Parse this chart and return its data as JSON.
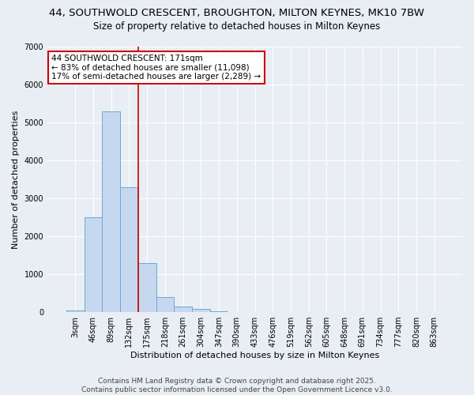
{
  "title_line1": "44, SOUTHWOLD CRESCENT, BROUGHTON, MILTON KEYNES, MK10 7BW",
  "title_line2": "Size of property relative to detached houses in Milton Keynes",
  "xlabel": "Distribution of detached houses by size in Milton Keynes",
  "ylabel": "Number of detached properties",
  "categories": [
    "3sqm",
    "46sqm",
    "89sqm",
    "132sqm",
    "175sqm",
    "218sqm",
    "261sqm",
    "304sqm",
    "347sqm",
    "390sqm",
    "433sqm",
    "476sqm",
    "519sqm",
    "562sqm",
    "605sqm",
    "648sqm",
    "691sqm",
    "734sqm",
    "777sqm",
    "820sqm",
    "863sqm"
  ],
  "values": [
    50,
    2500,
    5300,
    3300,
    1300,
    400,
    150,
    80,
    30,
    10,
    5,
    3,
    2,
    1,
    1,
    0,
    0,
    0,
    0,
    0,
    0
  ],
  "bar_color": "#c5d8ef",
  "bar_edge_color": "#6aaad4",
  "annotation_text": "44 SOUTHWOLD CRESCENT: 171sqm\n← 83% of detached houses are smaller (11,098)\n17% of semi-detached houses are larger (2,289) →",
  "vline_color": "#cc0000",
  "annotation_box_color": "#ffffff",
  "annotation_box_edge": "#cc0000",
  "footer_line1": "Contains HM Land Registry data © Crown copyright and database right 2025.",
  "footer_line2": "Contains public sector information licensed under the Open Government Licence v3.0.",
  "background_color": "#e8eef4",
  "ylim": [
    0,
    7000
  ],
  "yticks": [
    0,
    1000,
    2000,
    3000,
    4000,
    5000,
    6000,
    7000
  ],
  "title_fontsize": 9.5,
  "subtitle_fontsize": 8.5,
  "axis_label_fontsize": 8,
  "tick_fontsize": 7,
  "footer_fontsize": 6.5,
  "annotation_fontsize": 7.5,
  "vline_x": 3.5
}
